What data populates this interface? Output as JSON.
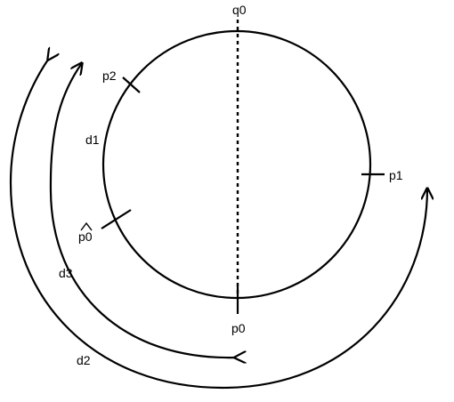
{
  "diagram": {
    "labels": {
      "q0": "q0",
      "p0": "p0",
      "p1": "p1",
      "p2": "p2",
      "p0_hat": "p0",
      "d1": "d1",
      "d2": "d2",
      "d3": "d3"
    },
    "colors": {
      "stroke": "#000000",
      "background": "#ffffff"
    }
  }
}
